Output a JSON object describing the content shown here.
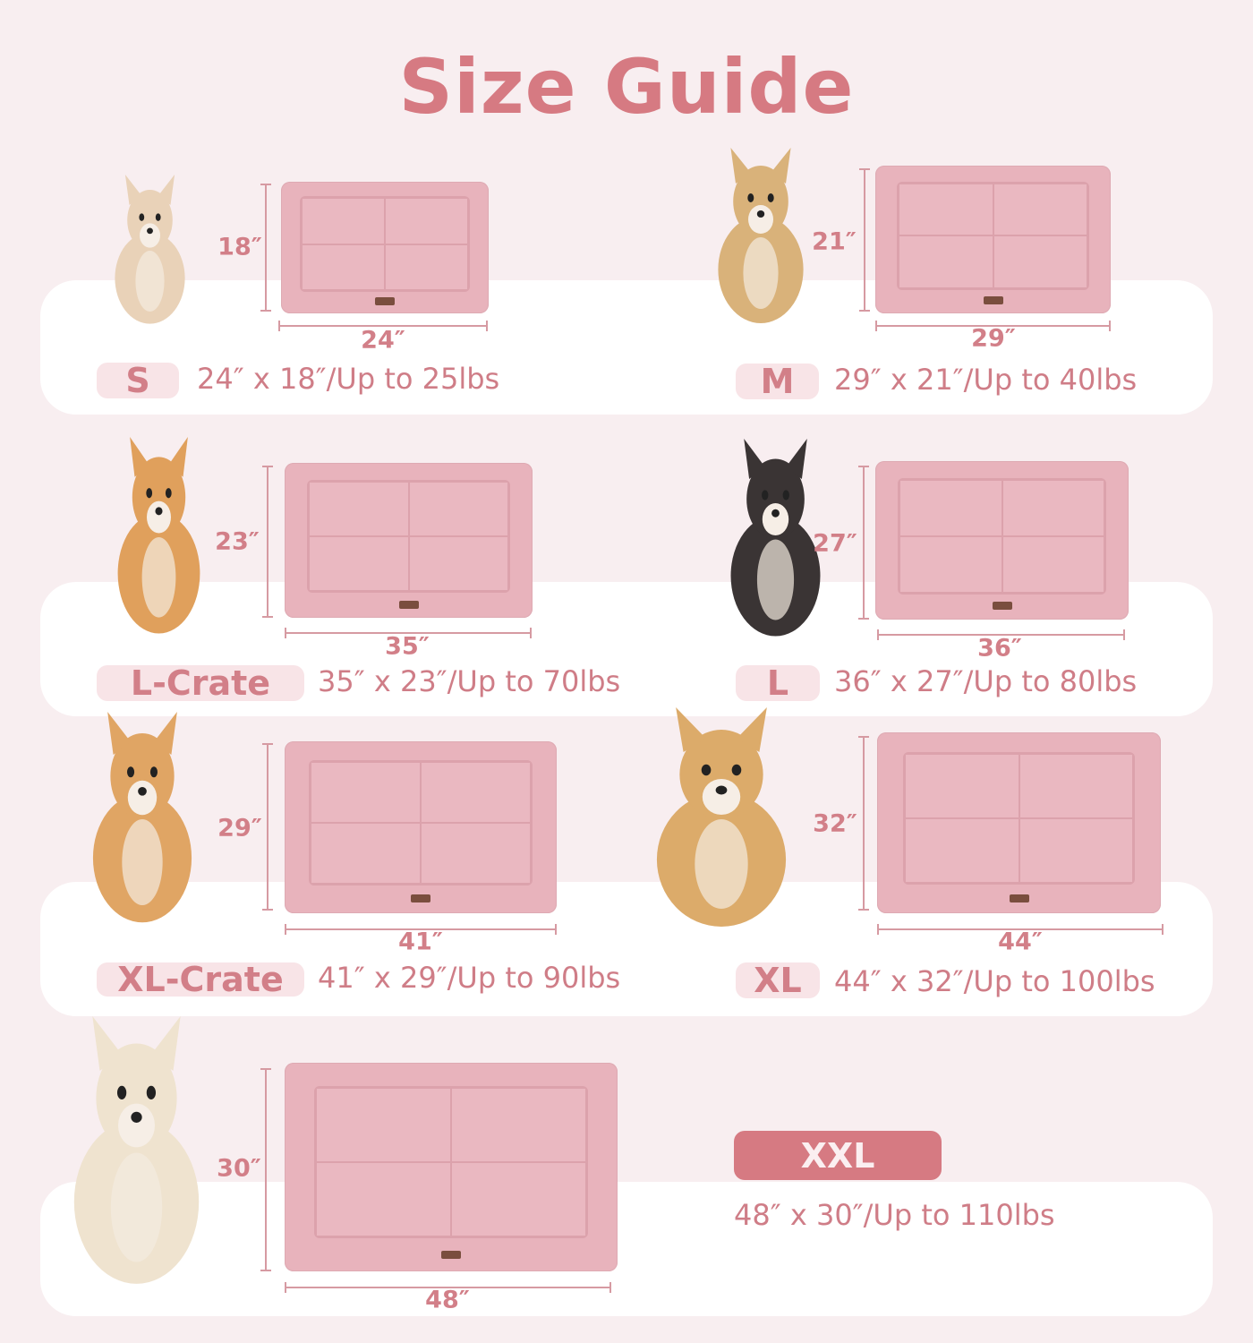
{
  "title": "Size Guide",
  "colors": {
    "background": "#f8eef0",
    "accent": "#d67a82",
    "mat": "#e8b3bc",
    "band": "#ffffff"
  },
  "sizes": [
    {
      "label": "S",
      "height": "18″",
      "width": "24″",
      "spec": "24″ x 18″/Up to 25lbs",
      "dog": "chihuahua-photo"
    },
    {
      "label": "M",
      "height": "21″",
      "width": "29″",
      "spec": "29″ x 21″/Up to 40lbs",
      "dog": "fluffy-puppy-photo"
    },
    {
      "label": "L-Crate",
      "height": "23″",
      "width": "35″",
      "spec": "35″ x 23″/Up to 70lbs",
      "dog": "corgi-photo"
    },
    {
      "label": "L",
      "height": "27″",
      "width": "36″",
      "spec": "36″ x 27″/Up to 80lbs",
      "dog": "border-collie-photo"
    },
    {
      "label": "XL-Crate",
      "height": "29″",
      "width": "41″",
      "spec": "41″ x 29″/Up to 90lbs",
      "dog": "shiba-inu-photo"
    },
    {
      "label": "XL",
      "height": "32″",
      "width": "44″",
      "spec": "44″ x 32″/Up to 100lbs",
      "dog": "golden-retriever-photo"
    },
    {
      "label": "XXL",
      "height": "30″",
      "width": "48″",
      "spec": "48″ x 30″/Up to 110lbs",
      "dog": "white-retriever-photo",
      "highlighted": true
    }
  ]
}
